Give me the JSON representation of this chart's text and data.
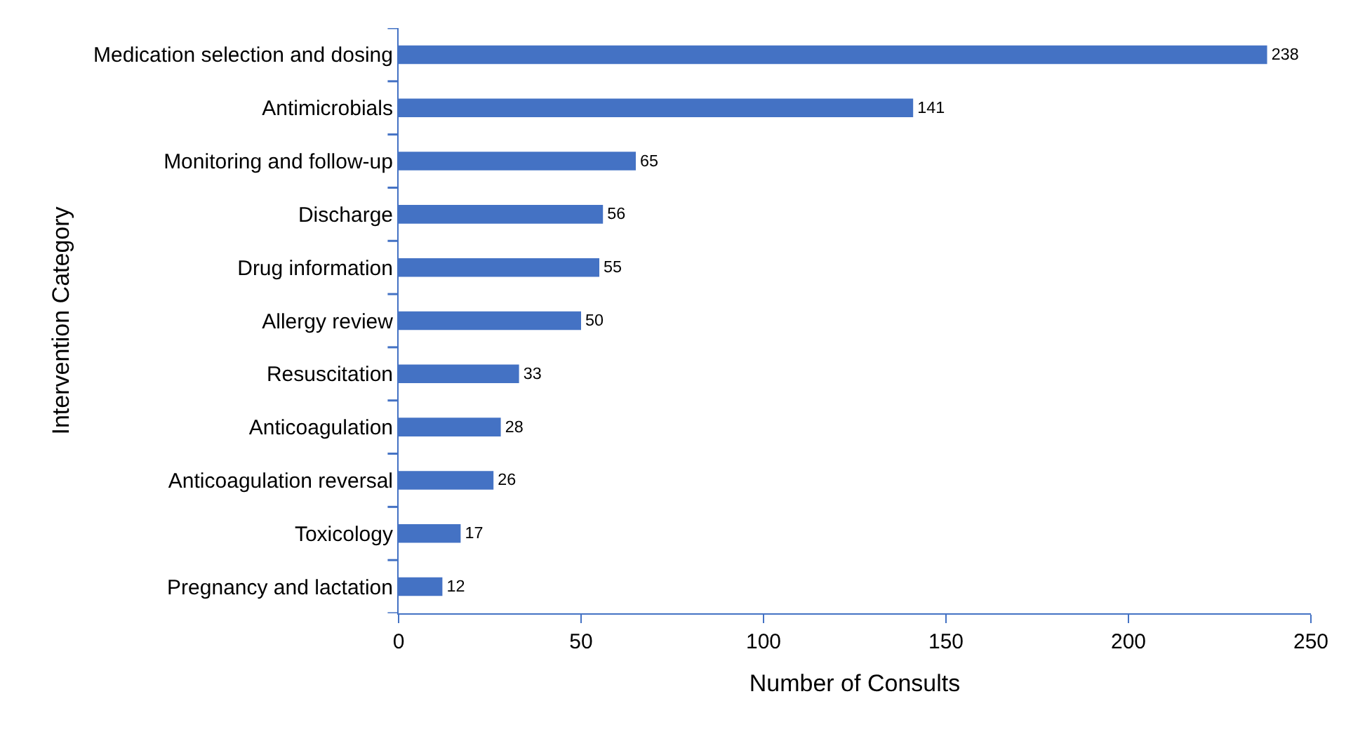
{
  "chart_data": {
    "type": "bar",
    "orientation": "horizontal",
    "xlabel": "Number of Consults",
    "ylabel": "Intervention Category",
    "categories": [
      "Medication selection and dosing",
      "Antimicrobials",
      "Monitoring and follow-up",
      "Discharge",
      "Drug information",
      "Allergy review",
      "Resuscitation",
      "Anticoagulation",
      "Anticoagulation reversal",
      "Toxicology",
      "Pregnancy and lactation"
    ],
    "values": [
      238,
      141,
      65,
      56,
      55,
      50,
      33,
      28,
      26,
      17,
      12
    ],
    "color": "#4472c4",
    "xlim": [
      0,
      250
    ],
    "xticks": [
      0,
      50,
      100,
      150,
      200,
      250
    ],
    "data_labels": true
  }
}
